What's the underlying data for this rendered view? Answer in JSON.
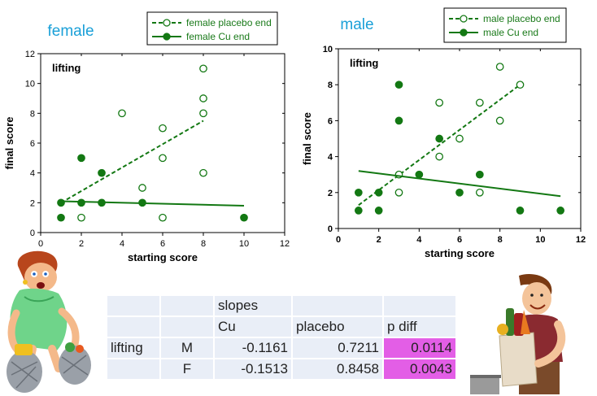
{
  "chart_data": [
    {
      "type": "scatter",
      "title": "female",
      "annotation": "lifting",
      "xlabel": "starting score",
      "ylabel": "final score",
      "xlim": [
        0,
        12
      ],
      "ylim": [
        0,
        12
      ],
      "xticks": [
        0,
        2,
        4,
        6,
        8,
        10,
        12
      ],
      "yticks": [
        0,
        2,
        4,
        6,
        8,
        10,
        12
      ],
      "series": [
        {
          "name": "female placebo end",
          "marker": "open-circle",
          "line": "dashed",
          "points": [
            [
              2,
              1
            ],
            [
              4,
              8
            ],
            [
              5,
              3
            ],
            [
              6,
              1
            ],
            [
              6,
              5
            ],
            [
              6,
              7
            ],
            [
              8,
              4
            ],
            [
              8,
              8
            ],
            [
              8,
              9
            ],
            [
              8,
              11
            ]
          ],
          "fit": [
            [
              1,
              2
            ],
            [
              8,
              7.5
            ]
          ]
        },
        {
          "name": "female Cu end",
          "marker": "filled-circle",
          "line": "solid",
          "points": [
            [
              1,
              1
            ],
            [
              1,
              2
            ],
            [
              2,
              5
            ],
            [
              2,
              2
            ],
            [
              3,
              4
            ],
            [
              3,
              2
            ],
            [
              5,
              2
            ],
            [
              10,
              1
            ]
          ],
          "fit": [
            [
              1,
              2.1
            ],
            [
              10,
              1.8
            ]
          ]
        }
      ]
    },
    {
      "type": "scatter",
      "title": "male",
      "annotation": "lifting",
      "xlabel": "starting score",
      "ylabel": "final score",
      "xlim": [
        0,
        12
      ],
      "ylim": [
        0,
        10
      ],
      "xticks": [
        0,
        2,
        4,
        6,
        8,
        10,
        12
      ],
      "yticks": [
        0,
        2,
        4,
        6,
        8,
        10
      ],
      "series": [
        {
          "name": "male placebo end",
          "marker": "open-circle",
          "line": "dashed",
          "points": [
            [
              3,
              2
            ],
            [
              3,
              3
            ],
            [
              5,
              4
            ],
            [
              5,
              7
            ],
            [
              6,
              5
            ],
            [
              7,
              2
            ],
            [
              7,
              7
            ],
            [
              8,
              6
            ],
            [
              8,
              9
            ],
            [
              9,
              8
            ]
          ],
          "fit": [
            [
              1,
              1.3
            ],
            [
              9,
              8
            ]
          ]
        },
        {
          "name": "male Cu end",
          "marker": "filled-circle",
          "line": "solid",
          "points": [
            [
              1,
              1
            ],
            [
              1,
              2
            ],
            [
              2,
              1
            ],
            [
              2,
              2
            ],
            [
              3,
              8
            ],
            [
              3,
              6
            ],
            [
              4,
              3
            ],
            [
              5,
              5
            ],
            [
              6,
              2
            ],
            [
              7,
              3
            ],
            [
              9,
              1
            ],
            [
              11,
              1
            ]
          ],
          "fit": [
            [
              1,
              3.2
            ],
            [
              11,
              1.8
            ]
          ]
        }
      ]
    }
  ],
  "colors": {
    "series": "#137813",
    "title": "#1aa0d8",
    "cell": "#e9eef7",
    "pdiff_highlight": "#e35ee6"
  },
  "table": {
    "header1": "slopes",
    "header_cu": "Cu",
    "header_placebo": "placebo",
    "header_pdiff": "p diff",
    "group_label": "lifting",
    "rows": [
      {
        "sex": "M",
        "cu": "-0.1161",
        "placebo": "0.7211",
        "pdiff": "0.0114"
      },
      {
        "sex": "F",
        "cu": "-0.1513",
        "placebo": "0.8458",
        "pdiff": "0.0043"
      }
    ]
  },
  "illustrations": {
    "left": "woman-lifting-bags-icon",
    "right": "man-carrying-groceries-icon"
  }
}
